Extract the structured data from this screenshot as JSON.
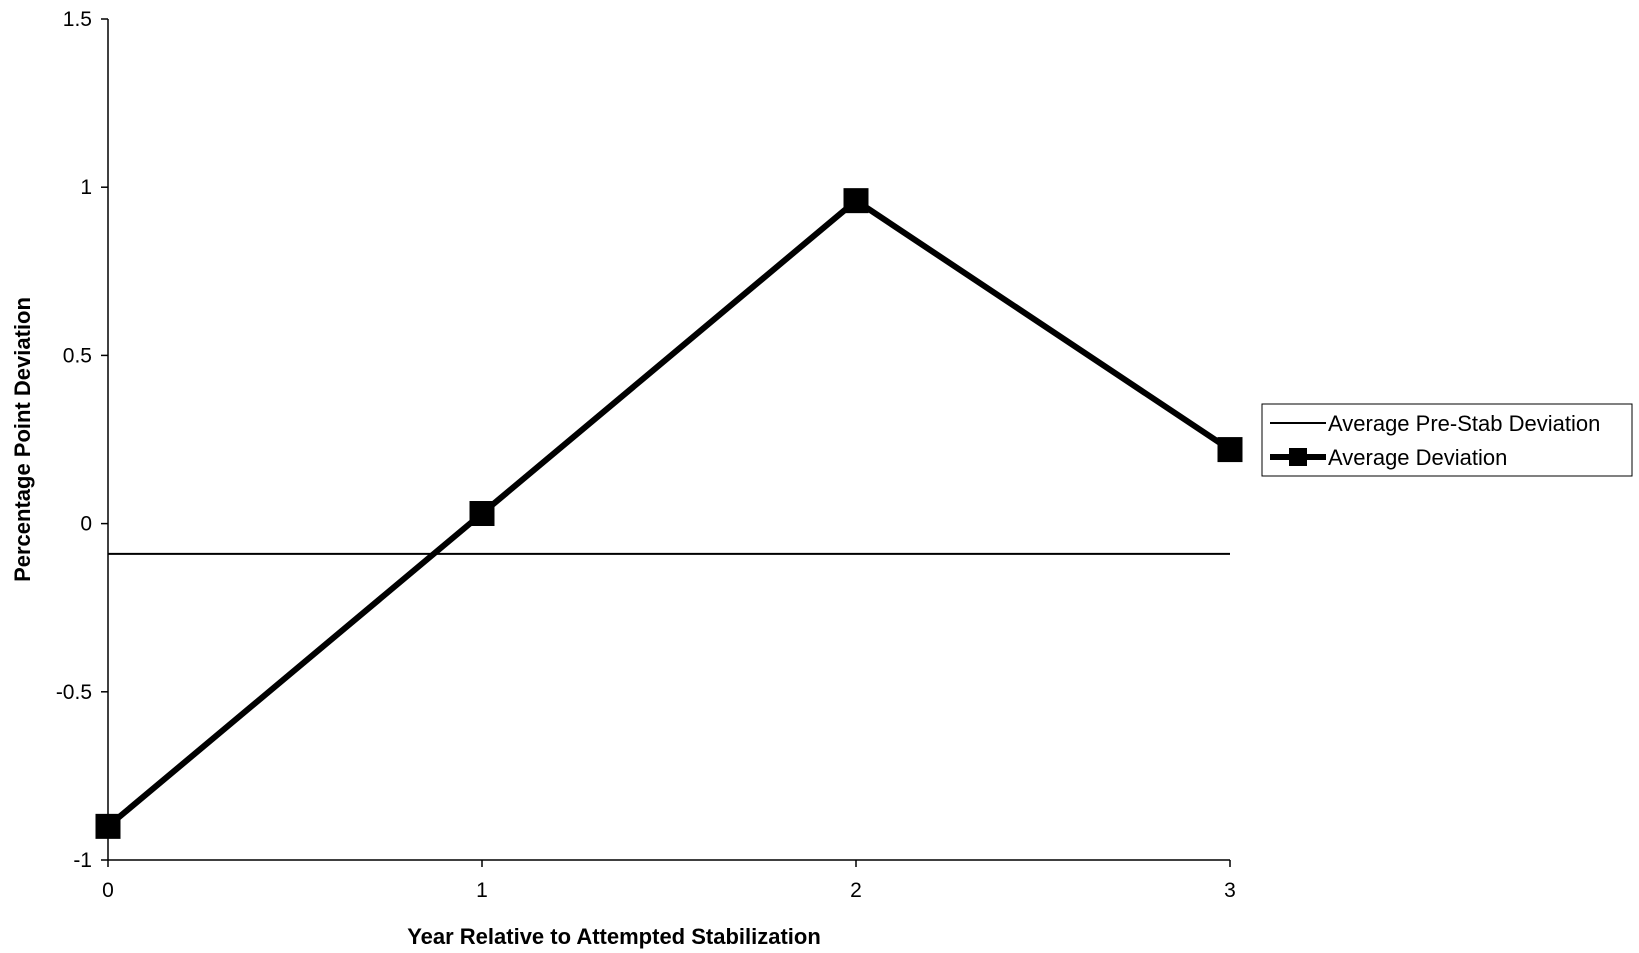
{
  "chart_data": {
    "type": "line",
    "title": "",
    "xlabel": "Year Relative to Attempted Stabilization",
    "ylabel": "Percentage Point Deviation",
    "x": [
      0,
      1,
      2,
      3
    ],
    "x_tick_labels": [
      "0",
      "1",
      "2",
      "3"
    ],
    "xlim": [
      0,
      3
    ],
    "ylim": [
      -1,
      1.5
    ],
    "y_ticks": [
      -1,
      -0.5,
      0,
      0.5,
      1,
      1.5
    ],
    "y_tick_labels": [
      "-1",
      "-0.5",
      "0",
      "0.5",
      "1",
      "1.5"
    ],
    "grid": false,
    "legend_position": "right",
    "series": [
      {
        "name": "Average Pre-Stab Deviation",
        "values": [
          -0.09,
          -0.09,
          -0.09,
          -0.09
        ],
        "color": "#000000",
        "marker": "none",
        "style": "thin"
      },
      {
        "name": "Average Deviation",
        "values": [
          -0.9,
          0.03,
          0.96,
          0.22
        ],
        "color": "#000000",
        "marker": "square",
        "style": "thick"
      }
    ]
  }
}
